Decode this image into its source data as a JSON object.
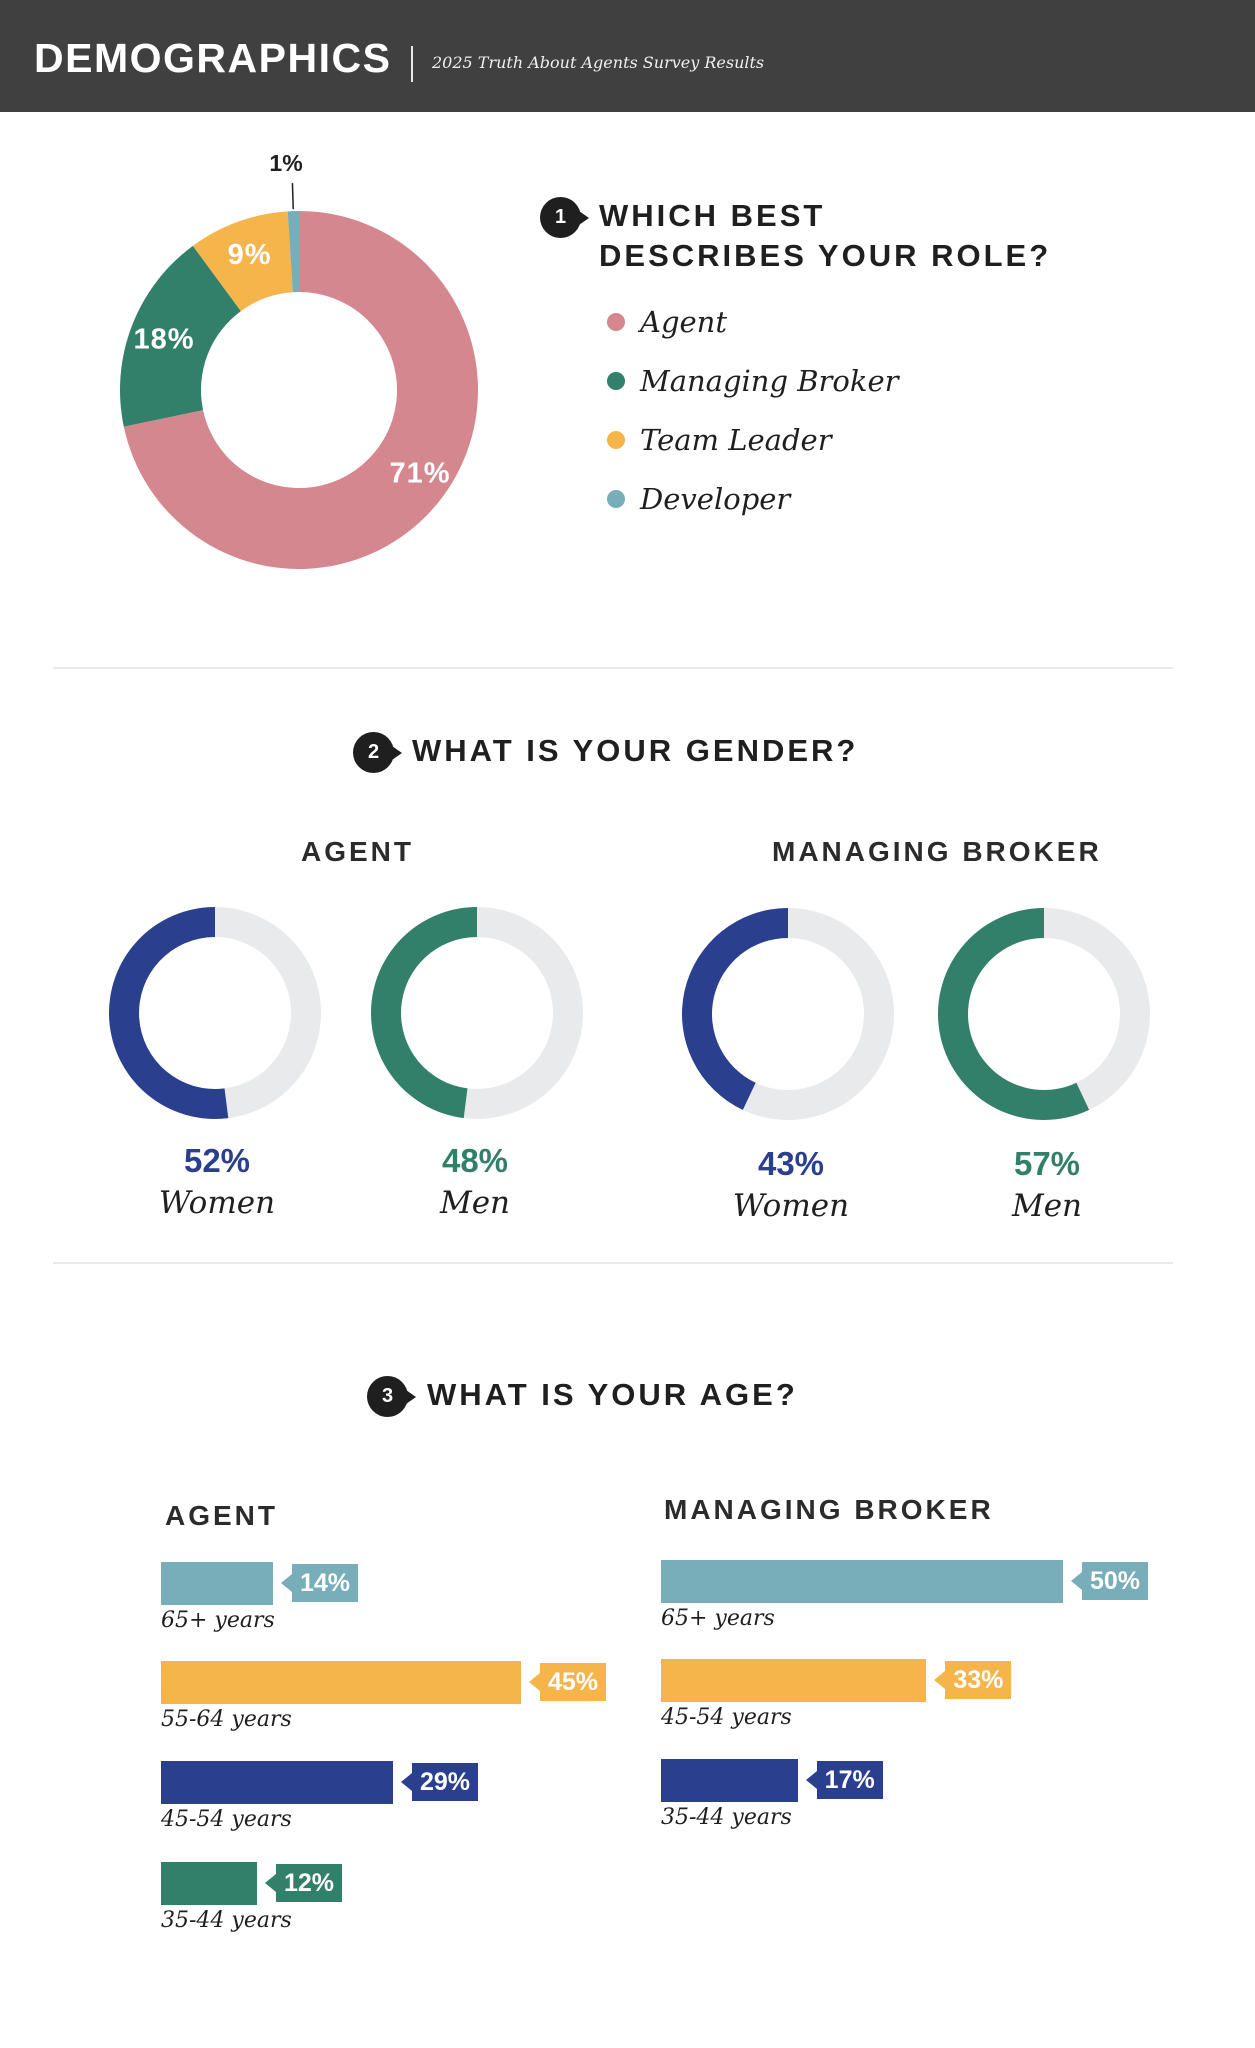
{
  "header": {
    "title": "DEMOGRAPHICS",
    "subtitle": "2025 Truth About Agents Survey Results"
  },
  "questions": [
    {
      "number": "1",
      "title_lines": [
        "WHICH BEST",
        "DESCRIBES YOUR ROLE?"
      ]
    },
    {
      "number": "2",
      "title": "WHAT IS YOUR GENDER?"
    },
    {
      "number": "3",
      "title": "WHAT IS YOUR AGE?"
    }
  ],
  "colors": {
    "header_bg": "#404040",
    "agent": "#d4878f",
    "managing_broker": "#32806a",
    "team_leader": "#f6b54b",
    "developer": "#78adba",
    "women": "#2b3f8f",
    "men": "#32806a",
    "track": "#e8eaec"
  },
  "chart_data": [
    {
      "type": "pie",
      "title": "WHICH BEST DESCRIBES YOUR ROLE?",
      "slices": [
        {
          "label": "Agent",
          "value": 71,
          "display": "71%",
          "color": "#d4878f"
        },
        {
          "label": "Managing Broker",
          "value": 18,
          "display": "18%",
          "color": "#32806a"
        },
        {
          "label": "Team Leader",
          "value": 9,
          "display": "9%",
          "color": "#f6b54b"
        },
        {
          "label": "Developer",
          "value": 1,
          "display": "1%",
          "color": "#78adba"
        }
      ]
    },
    {
      "type": "pie",
      "title": "WHAT IS YOUR GENDER?",
      "groups": [
        {
          "group": "AGENT",
          "rings": [
            {
              "label": "Women",
              "value": 52,
              "display": "52%",
              "color": "#2b3f8f"
            },
            {
              "label": "Men",
              "value": 48,
              "display": "48%",
              "color": "#32806a"
            }
          ]
        },
        {
          "group": "MANAGING BROKER",
          "rings": [
            {
              "label": "Women",
              "value": 43,
              "display": "43%",
              "color": "#2b3f8f"
            },
            {
              "label": "Men",
              "value": 57,
              "display": "57%",
              "color": "#32806a"
            }
          ]
        }
      ]
    },
    {
      "type": "bar",
      "title": "WHAT IS YOUR AGE?",
      "groups": [
        {
          "group": "AGENT",
          "bars": [
            {
              "category": "65+ years",
              "value": 14,
              "display": "14%",
              "color": "#78adba"
            },
            {
              "category": "55-64 years",
              "value": 45,
              "display": "45%",
              "color": "#f6b54b"
            },
            {
              "category": "45-54 years",
              "value": 29,
              "display": "29%",
              "color": "#2b3f8f"
            },
            {
              "category": "35-44 years",
              "value": 12,
              "display": "12%",
              "color": "#32806a"
            }
          ]
        },
        {
          "group": "MANAGING BROKER",
          "bars": [
            {
              "category": "65+ years",
              "value": 50,
              "display": "50%",
              "color": "#78adba"
            },
            {
              "category": "45-54 years",
              "value": 33,
              "display": "33%",
              "color": "#f6b54b"
            },
            {
              "category": "35-44 years",
              "value": 17,
              "display": "17%",
              "color": "#2b3f8f"
            }
          ]
        }
      ]
    }
  ]
}
